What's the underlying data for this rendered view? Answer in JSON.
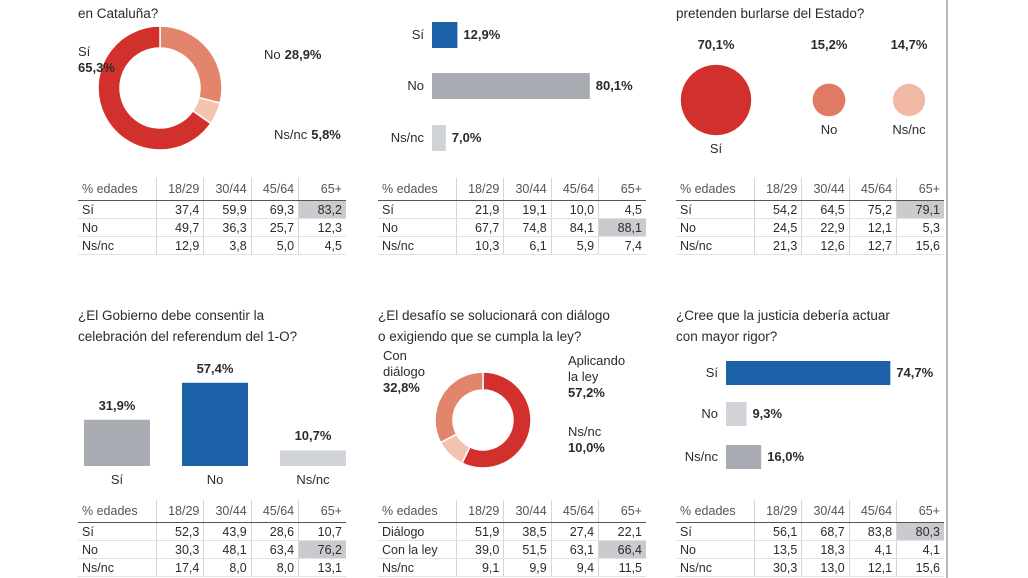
{
  "chart_data": [
    {
      "type": "donut",
      "title": "en Cataluña?",
      "categories": [
        "Sí",
        "No",
        "Ns/nc"
      ],
      "values": [
        65.3,
        28.9,
        5.8
      ],
      "value_labels": [
        "65,3%",
        "28,9%",
        "5,8%"
      ],
      "colors": [
        "#d2302c",
        "#e3856c",
        "#f3c3b0"
      ],
      "table": {
        "header": [
          "% edades",
          "18/29",
          "30/44",
          "45/64",
          "65+"
        ],
        "rows": [
          [
            "Sí",
            "37,4",
            "59,9",
            "69,3",
            "83,2"
          ],
          [
            "No",
            "49,7",
            "36,3",
            "25,7",
            "12,3"
          ],
          [
            "Ns/nc",
            "12,9",
            "3,8",
            "5,0",
            "4,5"
          ]
        ]
      }
    },
    {
      "type": "hbar",
      "categories": [
        "Sí",
        "No",
        "Ns/nc"
      ],
      "values": [
        12.9,
        80.1,
        7.0
      ],
      "value_labels": [
        "12,9%",
        "80,1%",
        "7,0%"
      ],
      "colors": [
        "#1d62a8",
        "#a8abb1",
        "#d0d3d8"
      ],
      "table": {
        "header": [
          "% edades",
          "18/29",
          "30/44",
          "45/64",
          "65+"
        ],
        "rows": [
          [
            "Sí",
            "21,9",
            "19,1",
            "10,0",
            "4,5"
          ],
          [
            "No",
            "67,7",
            "74,8",
            "84,1",
            "88,1"
          ],
          [
            "Ns/nc",
            "10,3",
            "6,1",
            "5,9",
            "7,4"
          ]
        ]
      }
    },
    {
      "type": "bubble",
      "title": "pretenden burlarse del Estado?",
      "categories": [
        "Sí",
        "No",
        "Ns/nc"
      ],
      "values": [
        70.1,
        15.2,
        14.7
      ],
      "value_labels": [
        "70,1%",
        "15,2%",
        "14,7%"
      ],
      "colors": [
        "#d2302c",
        "#e07a62",
        "#f1b8a4"
      ],
      "table": {
        "header": [
          "% edades",
          "18/29",
          "30/44",
          "45/64",
          "65+"
        ],
        "rows": [
          [
            "Sí",
            "54,2",
            "64,5",
            "75,2",
            "79,1"
          ],
          [
            "No",
            "24,5",
            "22,9",
            "12,1",
            "5,3"
          ],
          [
            "Ns/nc",
            "21,3",
            "12,6",
            "12,7",
            "15,6"
          ]
        ]
      }
    },
    {
      "type": "bar",
      "title": "¿El Gobierno debe consentir la\ncelebración del referendum del 1-O?",
      "categories": [
        "Sí",
        "No",
        "Ns/nc"
      ],
      "values": [
        31.9,
        57.4,
        10.7
      ],
      "value_labels": [
        "31,9%",
        "57,4%",
        "10,7%"
      ],
      "colors": [
        "#a8abb1",
        "#1d62a8",
        "#d0d3d8"
      ],
      "table": {
        "header": [
          "% edades",
          "18/29",
          "30/44",
          "45/64",
          "65+"
        ],
        "rows": [
          [
            "Sí",
            "52,3",
            "43,9",
            "28,6",
            "10,7"
          ],
          [
            "No",
            "30,3",
            "48,1",
            "63,4",
            "76,2"
          ],
          [
            "Ns/nc",
            "17,4",
            "8,0",
            "8,0",
            "13,1"
          ]
        ]
      }
    },
    {
      "type": "donut",
      "title": "¿El desafío se solucionará con diálogo\no exigiendo que se cumpla la ley?",
      "categories": [
        "Con diálogo",
        "Aplicando la ley",
        "Ns/nc"
      ],
      "values": [
        32.8,
        57.2,
        10.0
      ],
      "value_labels": [
        "32,8%",
        "57,2%",
        "10,0%"
      ],
      "colors": [
        "#e3856c",
        "#d2302c",
        "#f3c3b0"
      ],
      "table": {
        "header": [
          "% edades",
          "18/29",
          "30/44",
          "45/64",
          "65+"
        ],
        "rows": [
          [
            "Diálogo",
            "51,9",
            "38,5",
            "27,4",
            "22,1"
          ],
          [
            "Con la ley",
            "39,0",
            "51,5",
            "63,1",
            "66,4"
          ],
          [
            "Ns/nc",
            "9,1",
            "9,9",
            "9,4",
            "11,5"
          ]
        ]
      }
    },
    {
      "type": "hbar",
      "title": "¿Cree que la justicia debería actuar\ncon mayor rigor?",
      "categories": [
        "Sí",
        "No",
        "Ns/nc"
      ],
      "values": [
        74.7,
        9.3,
        16.0
      ],
      "value_labels": [
        "74,7%",
        "9,3%",
        "16,0%"
      ],
      "colors": [
        "#1d62a8",
        "#d0d3d8",
        "#a8abb1"
      ],
      "table": {
        "header": [
          "% edades",
          "18/29",
          "30/44",
          "45/64",
          "65+"
        ],
        "rows": [
          [
            "Sí",
            "56,1",
            "68,7",
            "83,8",
            "80,3"
          ],
          [
            "No",
            "13,5",
            "18,3",
            "4,1",
            "4,1"
          ],
          [
            "Ns/nc",
            "30,3",
            "13,0",
            "12,1",
            "15,6"
          ]
        ]
      }
    }
  ]
}
